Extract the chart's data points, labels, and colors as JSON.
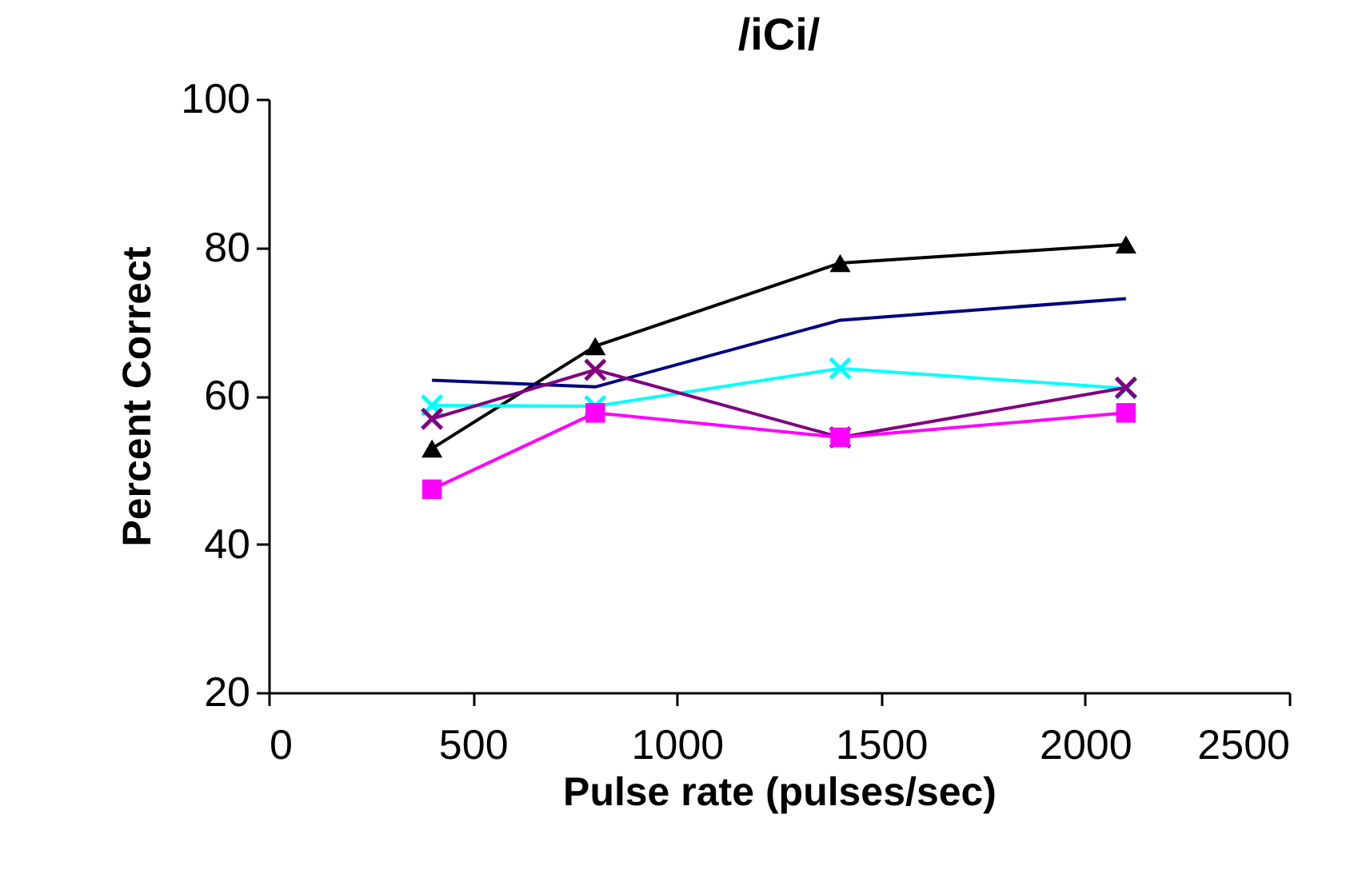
{
  "chart_data": {
    "type": "line",
    "title": "/iCi/",
    "xlabel": "Pulse rate (pulses/sec)",
    "ylabel": "Percent Correct",
    "x": [
      400,
      800,
      1400,
      2100
    ],
    "xlim": [
      0,
      2500
    ],
    "xticks": [
      0,
      500,
      1000,
      1500,
      2000,
      2500
    ],
    "ylim": [
      20,
      100
    ],
    "yticks": [
      20,
      40,
      60,
      80,
      100
    ],
    "grid": false,
    "line_style": "solid",
    "series": [
      {
        "color": "#000000",
        "marker": "triangle",
        "values": [
          52.9,
          66.7,
          77.9,
          80.4
        ]
      },
      {
        "color": "#000080",
        "marker": "none",
        "values": [
          62.1,
          61.2,
          70.2,
          73.1
        ]
      },
      {
        "color": "#00ffff",
        "marker": "cross",
        "values": [
          58.7,
          58.6,
          63.7,
          61.0
        ]
      },
      {
        "color": "#800080",
        "marker": "cross",
        "values": [
          56.9,
          63.5,
          54.4,
          61.1
        ]
      },
      {
        "color": "#ff00ff",
        "marker": "square",
        "values": [
          47.4,
          57.7,
          54.4,
          57.7
        ]
      }
    ]
  }
}
